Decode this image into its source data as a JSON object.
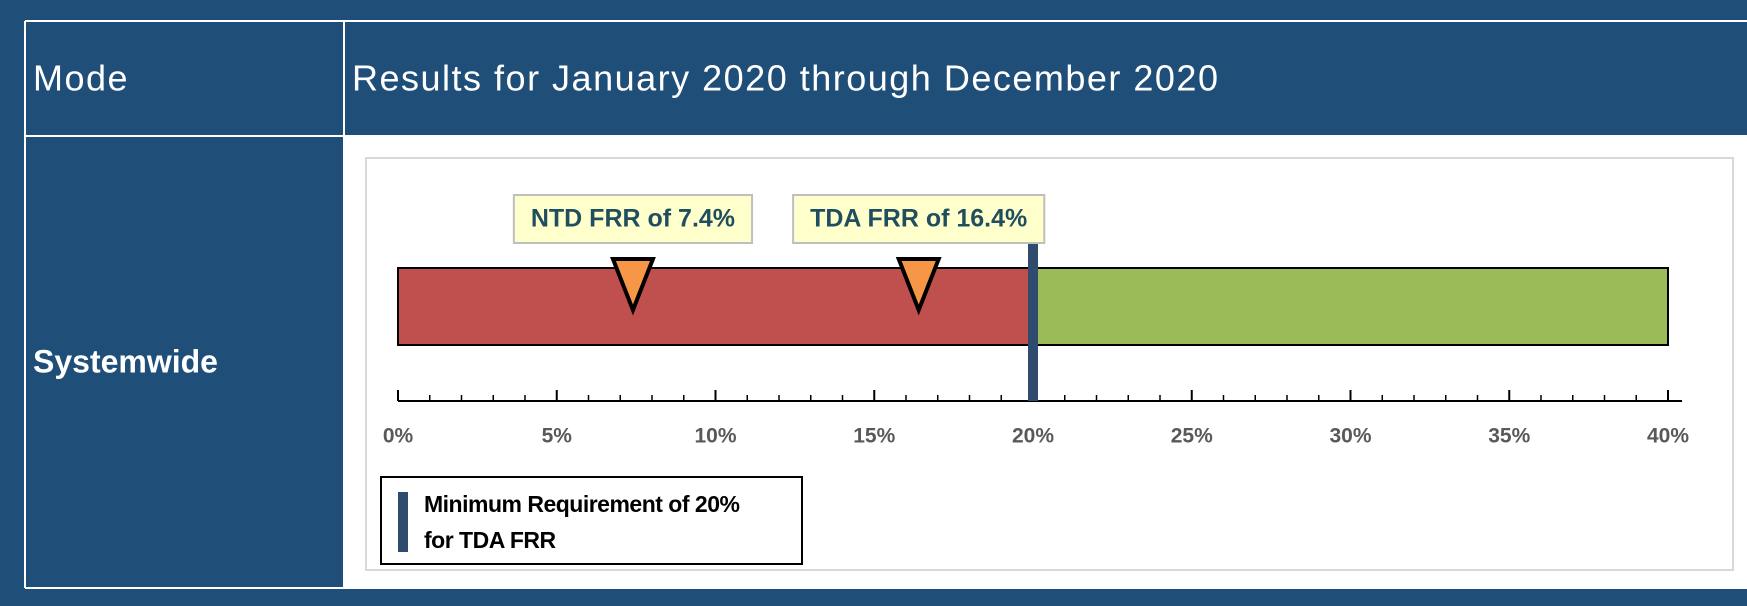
{
  "table": {
    "headers": [
      "Mode",
      "Results for January 2020 through December 2020"
    ],
    "rows": [
      [
        "Systemwide"
      ]
    ]
  },
  "chart_data": {
    "type": "bullet",
    "ranges": [
      {
        "from": 0,
        "to": 20,
        "color": "#c0504d"
      },
      {
        "from": 20,
        "to": 40,
        "color": "#9bbb59"
      }
    ],
    "markers": [
      {
        "label": "NTD FRR of 7.4%",
        "value": 7.4,
        "color": "#f79646"
      },
      {
        "label": "TDA FRR of 16.4%",
        "value": 16.4,
        "color": "#f79646"
      }
    ],
    "threshold": {
      "value": 20,
      "label": "Minimum Requirement of 20% for TDA FRR",
      "color": "#2f4b6e"
    },
    "xlim": [
      0,
      40
    ],
    "xticks": [
      {
        "value": 0,
        "label": "0%"
      },
      {
        "value": 5,
        "label": "5%"
      },
      {
        "value": 10,
        "label": "10%"
      },
      {
        "value": 15,
        "label": "15%"
      },
      {
        "value": 20,
        "label": "20%"
      },
      {
        "value": 25,
        "label": "25%"
      },
      {
        "value": 30,
        "label": "30%"
      },
      {
        "value": 35,
        "label": "35%"
      },
      {
        "value": 40,
        "label": "40%"
      }
    ],
    "minor_tick_step": 1
  }
}
